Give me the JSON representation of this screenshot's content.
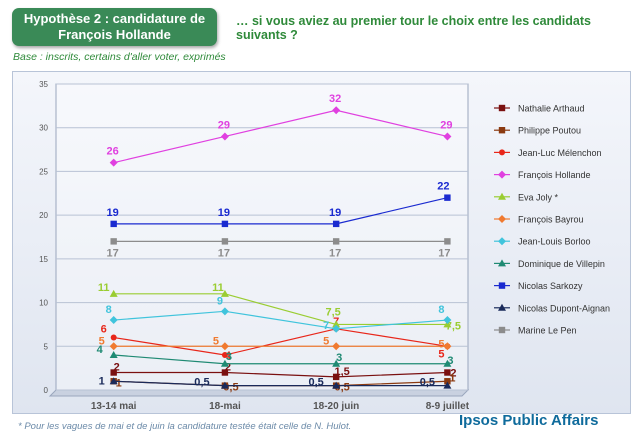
{
  "header": {
    "title_line1": "Hypothèse 2 : candidature de",
    "title_line2": "François Hollande",
    "question": "… si vous aviez au premier tour le choix entre les candidats suivants ?",
    "base": "Base : inscrits, certains d'aller voter, exprimés"
  },
  "footer": {
    "footnote": "* Pour les vagues de mai et de juin la candidature testée était celle de N. Hulot.",
    "brand": "Ipsos Public Affairs"
  },
  "chart_data": {
    "type": "line",
    "x": [
      "13-14 mai",
      "18-mai",
      "18-20 juin",
      "8-9 juillet"
    ],
    "ylim": [
      0,
      35
    ],
    "yticks": [
      "0",
      "5",
      "10",
      "15",
      "20",
      "25",
      "30",
      "35"
    ],
    "legend_position": "right",
    "series": [
      {
        "name": "Nathalie Arthaud",
        "color": "#7a1010",
        "marker": "square",
        "values": [
          2,
          2,
          1.5,
          2
        ],
        "labels": [
          "2",
          "2",
          "1,5",
          "2"
        ]
      },
      {
        "name": "Philippe Poutou",
        "color": "#8b3a10",
        "marker": "square",
        "values": [
          1,
          0.5,
          0.5,
          1
        ],
        "labels": [
          "1",
          "0,5",
          "0,5",
          "1"
        ]
      },
      {
        "name": "Jean-Luc Mélenchon",
        "color": "#e8261a",
        "marker": "circle",
        "values": [
          6,
          4,
          7,
          5
        ],
        "labels": [
          "6",
          "4",
          "7",
          "5"
        ]
      },
      {
        "name": "François Hollande",
        "color": "#e040e0",
        "marker": "diamond",
        "values": [
          26,
          29,
          32,
          29
        ],
        "labels": [
          "26",
          "29",
          "32",
          "29"
        ]
      },
      {
        "name": "Eva Joly *",
        "color": "#9acd32",
        "marker": "triangle",
        "values": [
          11,
          11,
          7.5,
          7.5
        ],
        "labels": [
          "11",
          "11",
          "7,5",
          "7,5"
        ]
      },
      {
        "name": "François Bayrou",
        "color": "#f07a30",
        "marker": "diamond",
        "values": [
          5,
          5,
          5,
          5
        ],
        "labels": [
          "5",
          "5",
          "5",
          "5"
        ]
      },
      {
        "name": "Jean-Louis Borloo",
        "color": "#40c4dc",
        "marker": "diamond",
        "values": [
          8,
          9,
          7,
          8
        ],
        "labels": [
          "8",
          "9",
          "7",
          "8"
        ]
      },
      {
        "name": "Dominique de Villepin",
        "color": "#1f8a73",
        "marker": "triangle",
        "values": [
          4,
          3,
          3,
          3
        ],
        "labels": [
          "4",
          "3",
          "3",
          "3"
        ]
      },
      {
        "name": "Nicolas Sarkozy",
        "color": "#1a2ad0",
        "marker": "square",
        "values": [
          19,
          19,
          19,
          22
        ],
        "labels": [
          "19",
          "19",
          "19",
          "22"
        ]
      },
      {
        "name": "Nicolas Dupont-Aignan",
        "color": "#1a2a5a",
        "marker": "triangle",
        "values": [
          1,
          0.5,
          0.5,
          0.5
        ],
        "labels": [
          "1",
          "0,5",
          "0,5",
          "0,5"
        ]
      },
      {
        "name": "Marine Le Pen",
        "color": "#8c8c8c",
        "marker": "square",
        "values": [
          17,
          17,
          17,
          17
        ],
        "labels": [
          "17",
          "17",
          "17",
          "17"
        ]
      }
    ]
  }
}
